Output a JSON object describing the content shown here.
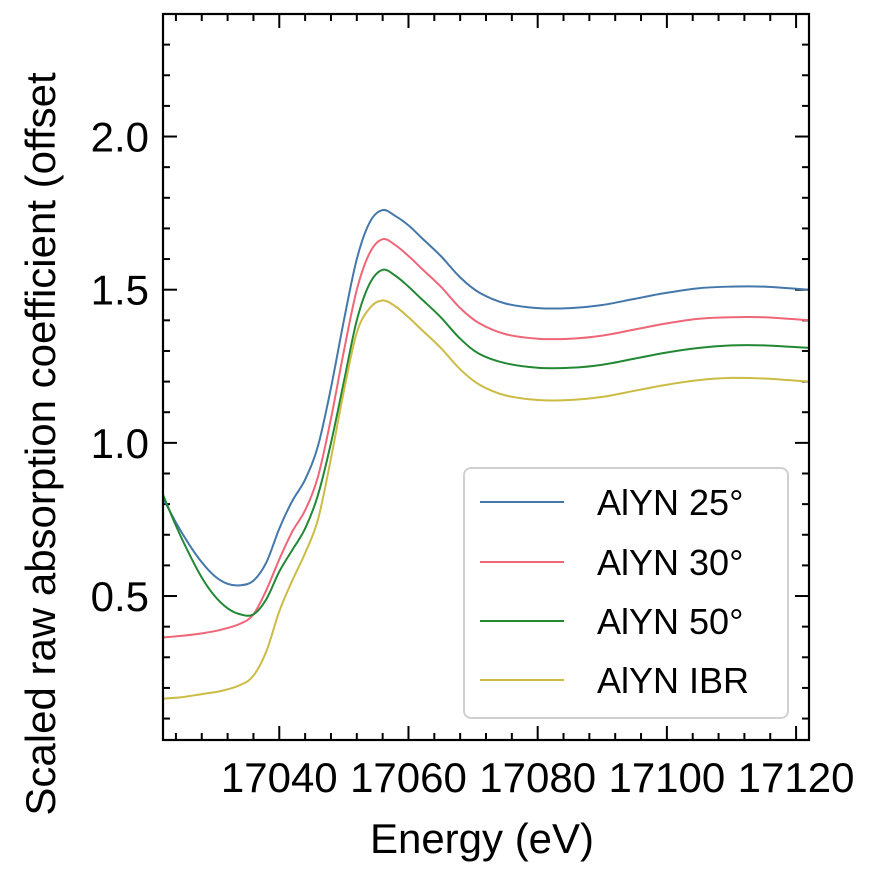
{
  "chart_data": {
    "type": "line",
    "title": "",
    "xlabel": "Energy (eV)",
    "ylabel": "Scaled raw absorption coefficient (offset",
    "xlim": [
      17022,
      17122
    ],
    "ylim": [
      0.03,
      2.4
    ],
    "x_ticks": [
      17040,
      17060,
      17080,
      17100,
      17120
    ],
    "x_tick_labels": [
      "17040",
      "17060",
      "17080",
      "17100",
      "17120"
    ],
    "y_ticks": [
      0.5,
      1.0,
      1.5,
      2.0
    ],
    "y_tick_labels": [
      "0.5",
      "1.0",
      "1.5",
      "2.0"
    ],
    "grid": false,
    "legend_position": "lower-right",
    "series": [
      {
        "name": "AlYN 25°",
        "color": "#4477AA",
        "points": [
          [
            17022,
            0.82
          ],
          [
            17024,
            0.74
          ],
          [
            17026,
            0.67
          ],
          [
            17028,
            0.61
          ],
          [
            17030,
            0.565
          ],
          [
            17032,
            0.54
          ],
          [
            17034,
            0.535
          ],
          [
            17036,
            0.55
          ],
          [
            17038,
            0.61
          ],
          [
            17040,
            0.72
          ],
          [
            17042,
            0.81
          ],
          [
            17044,
            0.88
          ],
          [
            17046,
            0.99
          ],
          [
            17048,
            1.18
          ],
          [
            17050,
            1.4
          ],
          [
            17052,
            1.6
          ],
          [
            17054,
            1.72
          ],
          [
            17056,
            1.76
          ],
          [
            17058,
            1.74
          ],
          [
            17060,
            1.71
          ],
          [
            17062,
            1.67
          ],
          [
            17065,
            1.61
          ],
          [
            17068,
            1.54
          ],
          [
            17071,
            1.49
          ],
          [
            17075,
            1.455
          ],
          [
            17080,
            1.44
          ],
          [
            17085,
            1.44
          ],
          [
            17090,
            1.45
          ],
          [
            17095,
            1.47
          ],
          [
            17100,
            1.49
          ],
          [
            17105,
            1.505
          ],
          [
            17110,
            1.51
          ],
          [
            17115,
            1.51
          ],
          [
            17122,
            1.5
          ]
        ]
      },
      {
        "name": "AlYN 30°",
        "color": "#EE6677",
        "points": [
          [
            17022,
            0.365
          ],
          [
            17025,
            0.37
          ],
          [
            17028,
            0.378
          ],
          [
            17031,
            0.39
          ],
          [
            17034,
            0.41
          ],
          [
            17036,
            0.44
          ],
          [
            17038,
            0.52
          ],
          [
            17040,
            0.62
          ],
          [
            17042,
            0.71
          ],
          [
            17044,
            0.78
          ],
          [
            17046,
            0.89
          ],
          [
            17048,
            1.08
          ],
          [
            17050,
            1.3
          ],
          [
            17052,
            1.5
          ],
          [
            17054,
            1.62
          ],
          [
            17056,
            1.665
          ],
          [
            17058,
            1.645
          ],
          [
            17060,
            1.61
          ],
          [
            17062,
            1.57
          ],
          [
            17065,
            1.51
          ],
          [
            17068,
            1.44
          ],
          [
            17071,
            1.39
          ],
          [
            17075,
            1.355
          ],
          [
            17080,
            1.34
          ],
          [
            17085,
            1.34
          ],
          [
            17090,
            1.35
          ],
          [
            17095,
            1.37
          ],
          [
            17100,
            1.39
          ],
          [
            17105,
            1.405
          ],
          [
            17110,
            1.41
          ],
          [
            17115,
            1.41
          ],
          [
            17122,
            1.4
          ]
        ]
      },
      {
        "name": "AlYN 50°",
        "color": "#228833",
        "points": [
          [
            17022,
            0.83
          ],
          [
            17024,
            0.73
          ],
          [
            17026,
            0.64
          ],
          [
            17028,
            0.56
          ],
          [
            17030,
            0.5
          ],
          [
            17032,
            0.46
          ],
          [
            17034,
            0.44
          ],
          [
            17036,
            0.44
          ],
          [
            17038,
            0.49
          ],
          [
            17040,
            0.58
          ],
          [
            17042,
            0.65
          ],
          [
            17044,
            0.72
          ],
          [
            17046,
            0.83
          ],
          [
            17048,
            1.0
          ],
          [
            17050,
            1.2
          ],
          [
            17052,
            1.4
          ],
          [
            17054,
            1.52
          ],
          [
            17056,
            1.565
          ],
          [
            17058,
            1.545
          ],
          [
            17060,
            1.51
          ],
          [
            17062,
            1.47
          ],
          [
            17065,
            1.41
          ],
          [
            17068,
            1.34
          ],
          [
            17071,
            1.29
          ],
          [
            17075,
            1.26
          ],
          [
            17080,
            1.245
          ],
          [
            17085,
            1.245
          ],
          [
            17090,
            1.255
          ],
          [
            17095,
            1.275
          ],
          [
            17100,
            1.295
          ],
          [
            17105,
            1.31
          ],
          [
            17110,
            1.318
          ],
          [
            17115,
            1.318
          ],
          [
            17122,
            1.31
          ]
        ]
      },
      {
        "name": "AlYN IBR",
        "color": "#CCBB44",
        "points": [
          [
            17022,
            0.165
          ],
          [
            17025,
            0.17
          ],
          [
            17028,
            0.18
          ],
          [
            17031,
            0.19
          ],
          [
            17034,
            0.21
          ],
          [
            17036,
            0.24
          ],
          [
            17038,
            0.32
          ],
          [
            17040,
            0.45
          ],
          [
            17042,
            0.55
          ],
          [
            17044,
            0.64
          ],
          [
            17046,
            0.75
          ],
          [
            17048,
            0.95
          ],
          [
            17050,
            1.17
          ],
          [
            17052,
            1.36
          ],
          [
            17054,
            1.44
          ],
          [
            17056,
            1.465
          ],
          [
            17058,
            1.445
          ],
          [
            17060,
            1.41
          ],
          [
            17062,
            1.37
          ],
          [
            17065,
            1.31
          ],
          [
            17068,
            1.24
          ],
          [
            17071,
            1.19
          ],
          [
            17075,
            1.155
          ],
          [
            17080,
            1.14
          ],
          [
            17085,
            1.14
          ],
          [
            17090,
            1.15
          ],
          [
            17095,
            1.17
          ],
          [
            17100,
            1.19
          ],
          [
            17105,
            1.205
          ],
          [
            17110,
            1.212
          ],
          [
            17115,
            1.21
          ],
          [
            17122,
            1.2
          ]
        ]
      }
    ]
  }
}
